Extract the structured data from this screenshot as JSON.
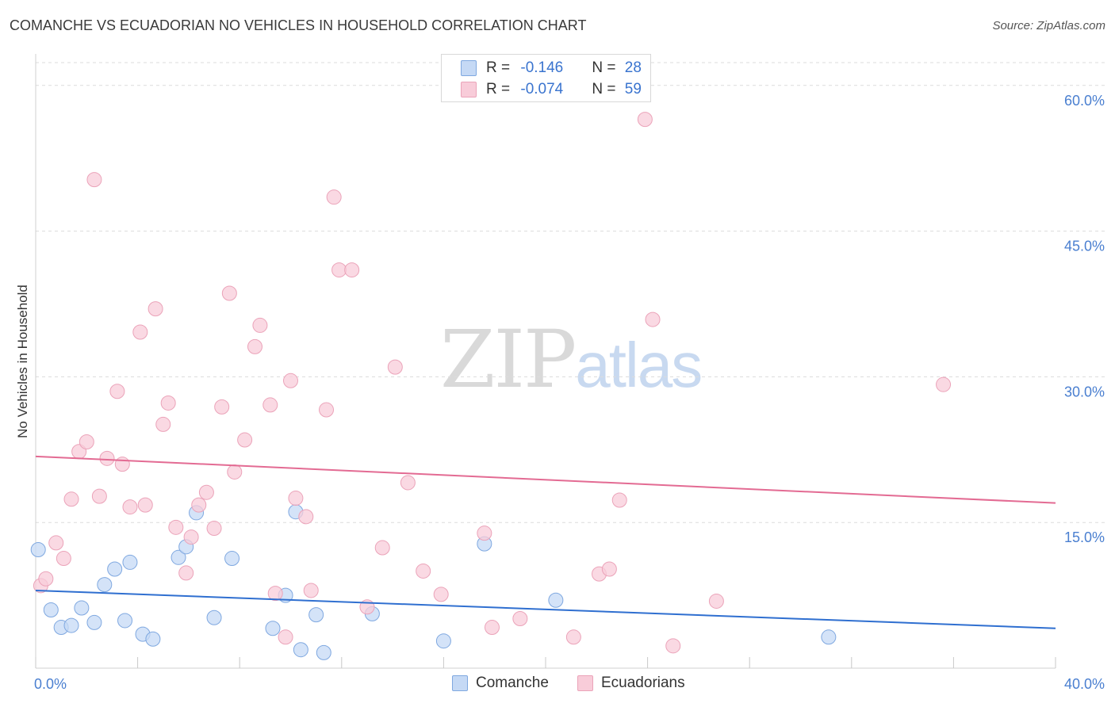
{
  "title": "COMANCHE VS ECUADORIAN NO VEHICLES IN HOUSEHOLD CORRELATION CHART",
  "source": "Source: ZipAtlas.com",
  "watermark": {
    "zip": "ZIP",
    "atlas": "atlas"
  },
  "legend": {
    "rows": [
      {
        "r_label": "R = ",
        "r_value": "-0.146",
        "n_label": "N = ",
        "n_value": "28"
      },
      {
        "r_label": "R = ",
        "r_value": "-0.074",
        "n_label": "N = ",
        "n_value": "59"
      }
    ]
  },
  "colors": {
    "comanche_fill": "#c5d9f5",
    "comanche_stroke": "#7fa8e0",
    "comanche_line": "#2f6fd0",
    "ecuadorian_fill": "#f8ccd9",
    "ecuadorian_stroke": "#eba3b9",
    "ecuadorian_line": "#e36b93",
    "tick": "#4a7fd0",
    "grid": "#dcdcdc"
  },
  "chart_data": {
    "type": "scatter",
    "title": "COMANCHE VS ECUADORIAN NO VEHICLES IN HOUSEHOLD CORRELATION CHART",
    "xlabel": "",
    "ylabel": "No Vehicles in Household",
    "xlim": [
      0,
      40
    ],
    "ylim": [
      0,
      63
    ],
    "x_tick_labels": [
      "0.0%",
      "40.0%"
    ],
    "y_ticks": [
      15,
      30,
      45,
      60
    ],
    "y_tick_labels": [
      "15.0%",
      "30.0%",
      "45.0%",
      "60.0%"
    ],
    "grid": true,
    "legend_position": "top-center",
    "series": [
      {
        "name": "Comanche",
        "trend": {
          "x": [
            0,
            40
          ],
          "y": [
            8.0,
            4.1
          ]
        },
        "points": [
          [
            0.1,
            12.2
          ],
          [
            0.6,
            6.0
          ],
          [
            1.0,
            4.2
          ],
          [
            1.4,
            4.4
          ],
          [
            1.8,
            6.2
          ],
          [
            2.3,
            4.7
          ],
          [
            2.7,
            8.6
          ],
          [
            3.1,
            10.2
          ],
          [
            3.5,
            4.9
          ],
          [
            3.7,
            10.9
          ],
          [
            4.2,
            3.5
          ],
          [
            4.6,
            3.0
          ],
          [
            5.6,
            11.4
          ],
          [
            5.9,
            12.5
          ],
          [
            6.3,
            16.0
          ],
          [
            7.0,
            5.2
          ],
          [
            7.7,
            11.3
          ],
          [
            9.3,
            4.1
          ],
          [
            9.8,
            7.5
          ],
          [
            10.2,
            16.1
          ],
          [
            10.4,
            1.9
          ],
          [
            11.0,
            5.5
          ],
          [
            11.3,
            1.6
          ],
          [
            13.2,
            5.6
          ],
          [
            16.0,
            2.8
          ],
          [
            17.6,
            12.8
          ],
          [
            20.4,
            7.0
          ],
          [
            31.1,
            3.2
          ]
        ]
      },
      {
        "name": "Ecuadorians",
        "trend": {
          "x": [
            0,
            40
          ],
          "y": [
            21.8,
            17.0
          ]
        },
        "points": [
          [
            0.2,
            8.5
          ],
          [
            0.4,
            9.2
          ],
          [
            0.8,
            12.9
          ],
          [
            1.1,
            11.3
          ],
          [
            1.4,
            17.4
          ],
          [
            1.7,
            22.3
          ],
          [
            2.0,
            23.3
          ],
          [
            2.3,
            50.3
          ],
          [
            2.5,
            17.7
          ],
          [
            2.8,
            21.6
          ],
          [
            3.2,
            28.5
          ],
          [
            3.4,
            21.0
          ],
          [
            3.7,
            16.6
          ],
          [
            4.1,
            34.6
          ],
          [
            4.3,
            16.8
          ],
          [
            4.7,
            37.0
          ],
          [
            5.0,
            25.1
          ],
          [
            5.2,
            27.3
          ],
          [
            5.5,
            14.5
          ],
          [
            5.9,
            9.8
          ],
          [
            6.1,
            13.5
          ],
          [
            6.4,
            16.8
          ],
          [
            6.7,
            18.1
          ],
          [
            7.0,
            14.4
          ],
          [
            7.3,
            26.9
          ],
          [
            7.6,
            38.6
          ],
          [
            7.8,
            20.2
          ],
          [
            8.2,
            23.5
          ],
          [
            8.6,
            33.1
          ],
          [
            8.8,
            35.3
          ],
          [
            9.2,
            27.1
          ],
          [
            9.4,
            7.7
          ],
          [
            9.8,
            3.2
          ],
          [
            10.0,
            29.6
          ],
          [
            10.2,
            17.5
          ],
          [
            10.6,
            15.6
          ],
          [
            10.8,
            8.0
          ],
          [
            11.4,
            26.6
          ],
          [
            11.7,
            48.5
          ],
          [
            11.9,
            41.0
          ],
          [
            12.4,
            41.0
          ],
          [
            13.0,
            6.3
          ],
          [
            13.6,
            12.4
          ],
          [
            14.1,
            31.0
          ],
          [
            14.6,
            19.1
          ],
          [
            15.2,
            10.0
          ],
          [
            15.9,
            7.6
          ],
          [
            17.6,
            13.9
          ],
          [
            17.9,
            4.2
          ],
          [
            19.0,
            5.1
          ],
          [
            21.1,
            3.2
          ],
          [
            22.1,
            9.7
          ],
          [
            22.5,
            10.2
          ],
          [
            22.9,
            17.3
          ],
          [
            23.9,
            56.5
          ],
          [
            24.2,
            35.9
          ],
          [
            25.0,
            2.3
          ],
          [
            26.7,
            6.9
          ],
          [
            35.6,
            29.2
          ]
        ]
      }
    ]
  }
}
